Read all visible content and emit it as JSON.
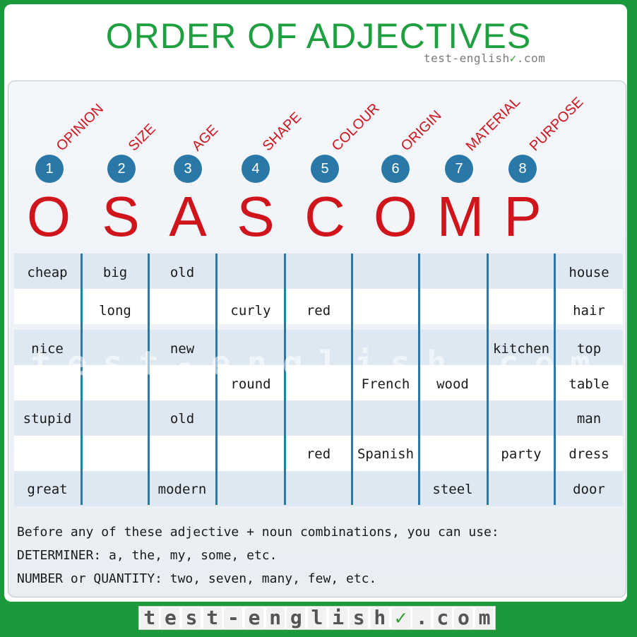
{
  "title": "ORDER OF ADJECTIVES",
  "brand": {
    "name": "test-english",
    "check": "✓",
    "suffix": ".com"
  },
  "categories": [
    "OPINION",
    "SIZE",
    "AGE",
    "SHAPE",
    "COLOUR",
    "ORIGIN",
    "MATERIAL",
    "PURPOSE"
  ],
  "numbers": [
    "1",
    "2",
    "3",
    "4",
    "5",
    "6",
    "7",
    "8"
  ],
  "letters": [
    "O",
    "S",
    "A",
    "S",
    "C",
    "O",
    "M",
    "P"
  ],
  "rows": [
    [
      "cheap",
      "big",
      "old",
      "",
      "",
      "",
      "",
      "",
      "house"
    ],
    [
      "",
      "long",
      "",
      "curly",
      "red",
      "",
      "",
      "",
      "hair"
    ],
    [
      "nice",
      "",
      "new",
      "",
      "",
      "",
      "",
      "kitchen",
      "top"
    ],
    [
      "",
      "",
      "",
      "round",
      "",
      "French",
      "wood",
      "",
      "table"
    ],
    [
      "stupid",
      "",
      "old",
      "",
      "",
      "",
      "",
      "",
      "man"
    ],
    [
      "",
      "",
      "",
      "",
      "red",
      "Spanish",
      "",
      "party",
      "dress"
    ],
    [
      "great",
      "",
      "modern",
      "",
      "",
      "",
      "steel",
      "",
      "door"
    ]
  ],
  "watermark": "test-english.com",
  "notes": [
    "Before any of these adjective + noun combinations, you can use:",
    "DETERMINER: a, the, my, some, etc.",
    "NUMBER or QUANTITY: two, seven, many, few, etc."
  ],
  "bottom_brand_chars": [
    "t",
    "e",
    "s",
    "t",
    "-",
    "e",
    "n",
    "g",
    "l",
    "i",
    "s",
    "h",
    "✓",
    ".",
    "c",
    "o",
    "m"
  ]
}
